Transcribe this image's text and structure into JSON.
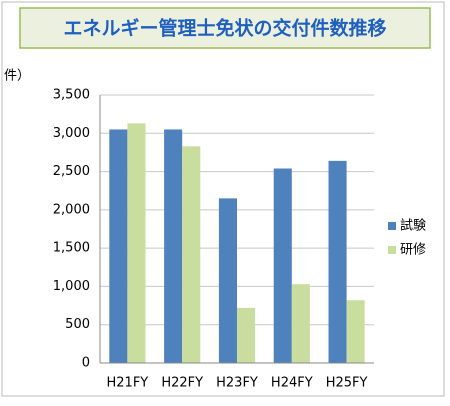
{
  "chart_data": {
    "type": "bar",
    "title": "エネルギー管理士免状の交付件数推移",
    "y_label": "件）",
    "categories": [
      "H21FY",
      "H22FY",
      "H23FY",
      "H24FY",
      "H25FY"
    ],
    "series": [
      {
        "name": "試験",
        "color": "#4f81bd",
        "values": [
          3050,
          3050,
          2150,
          2540,
          2640
        ]
      },
      {
        "name": "研修",
        "color": "#c9dd9f",
        "values": [
          3130,
          2830,
          720,
          1030,
          820
        ]
      }
    ],
    "ylim": [
      0,
      3500
    ],
    "yticks": [
      0,
      500,
      {
        "value": 1000,
        "label": "1,000"
      },
      {
        "value": 1500,
        "label": "1,500"
      },
      {
        "value": 2000,
        "label": "2,000"
      },
      {
        "value": 2500,
        "label": "2,500"
      },
      {
        "value": 3000,
        "label": "3,000"
      },
      {
        "value": 3500,
        "label": "3,500"
      }
    ],
    "grid": true,
    "legend": "right"
  }
}
